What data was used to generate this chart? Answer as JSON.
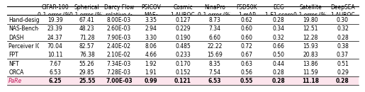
{
  "col_headers": [
    [
      "CIFAR-100",
      "0-1 error (%)"
    ],
    [
      "Spherical",
      "0-1 error (%)"
    ],
    [
      "Darcy Flow",
      "relative ℓ₂"
    ],
    [
      "PSICOV",
      "MAE₈"
    ],
    [
      "Cosmic",
      "1-AUROC"
    ],
    [
      "NinaPro",
      "0-1 error (%)"
    ],
    [
      "FSD50K",
      "1-mAP"
    ],
    [
      "ECG",
      "1-F1 score"
    ],
    [
      "Satellite",
      "0-1 error (%)"
    ],
    [
      "DeepSEA",
      "1-AUROC"
    ]
  ],
  "row_labels": [
    "Hand-designed",
    "NAS-Bench-360",
    "DASH",
    "Perceiver IO",
    "FPT",
    "NFT",
    "ORCA",
    "PaRe"
  ],
  "data": [
    [
      "19.39",
      "67.41",
      "8.00E-03",
      "3.35",
      "0.127",
      "8.73",
      "0.62",
      "0.28",
      "19.80",
      "0.30"
    ],
    [
      "23.39",
      "48.23",
      "2.60E-03",
      "2.94",
      "0.229",
      "7.34",
      "0.60",
      "0.34",
      "12.51",
      "0.32"
    ],
    [
      "24.37",
      "71.28",
      "7.90E-03",
      "3.30",
      "0.190",
      "6.60",
      "0.60",
      "0.32",
      "12.28",
      "0.28"
    ],
    [
      "70.04",
      "82.57",
      "2.40E-02",
      "8.06",
      "0.485",
      "22.22",
      "0.72",
      "0.66",
      "15.93",
      "0.38"
    ],
    [
      "10.11",
      "76.38",
      "2.10E-02",
      "4.66",
      "0.233",
      "15.69",
      "0.67",
      "0.50",
      "20.83",
      "0.37"
    ],
    [
      "7.67",
      "55.26",
      "7.34E-03",
      "1.92",
      "0.170",
      "8.35",
      "0.63",
      "0.44",
      "13.86",
      "0.51"
    ],
    [
      "6.53",
      "29.85",
      "7.28E-03",
      "1.91",
      "0.152",
      "7.54",
      "0.56",
      "0.28",
      "11.59",
      "0.29"
    ],
    [
      "6.25",
      "25.55",
      "7.00E-03",
      "0.99",
      "0.121",
      "6.53",
      "0.55",
      "0.28",
      "11.18",
      "0.28"
    ]
  ],
  "bold_last_row": true,
  "last_row_bg": "#fce4ec",
  "last_row_label_color": "#c2185b",
  "separator_after_data_rows": [
    0,
    2,
    4,
    6
  ],
  "fontsize": 5.5,
  "header_fontsize": 5.5
}
